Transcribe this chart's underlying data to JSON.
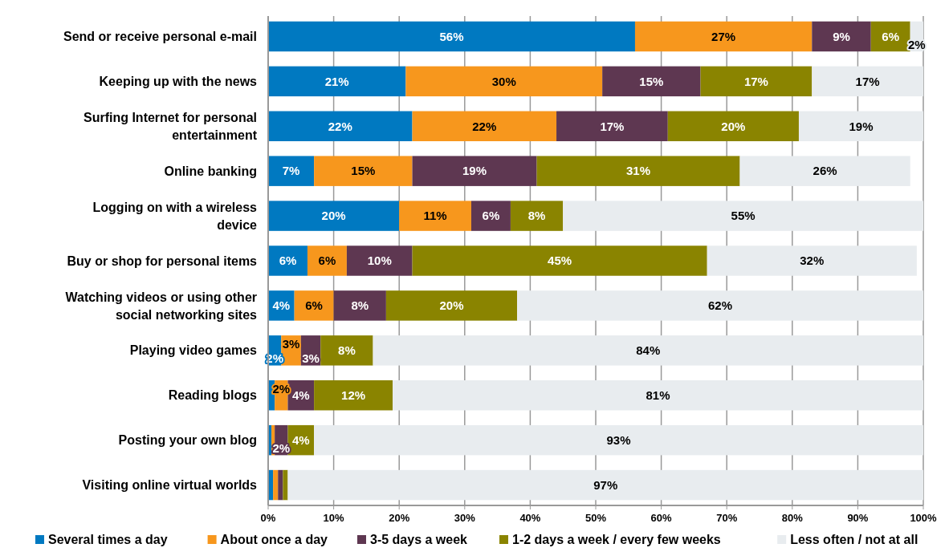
{
  "chart_data": {
    "type": "bar",
    "orientation": "horizontal",
    "stacked": true,
    "grid": "x",
    "legend": "bottom",
    "categories": [
      "Send or receive personal e-mail",
      "Keeping up with the news",
      "Surfing Internet for personal entertainment",
      "Online banking",
      "Logging on with a wireless device",
      "Buy or shop for personal items",
      "Watching videos or using other social networking sites",
      "Playing video games",
      "Reading blogs",
      "Posting your own blog",
      "Visiting online virtual worlds"
    ],
    "xlim": [
      0,
      100
    ],
    "xticks": [
      {
        "value": 0,
        "label": "0%"
      },
      {
        "value": 10,
        "label": "10%"
      },
      {
        "value": 20,
        "label": "20%"
      },
      {
        "value": 30,
        "label": "30%"
      },
      {
        "value": 40,
        "label": "40%"
      },
      {
        "value": 50,
        "label": "50%"
      },
      {
        "value": 60,
        "label": "60%"
      },
      {
        "value": 70,
        "label": "70%"
      },
      {
        "value": 80,
        "label": "80%"
      },
      {
        "value": 90,
        "label": "90%"
      },
      {
        "value": 100,
        "label": "100%"
      }
    ],
    "series": [
      {
        "name": "Several times a day",
        "color": "#0079c1",
        "values": [
          56,
          21,
          22,
          7,
          20,
          6,
          4,
          2,
          1,
          0.5,
          0.75
        ],
        "value_labels": [
          "56%",
          "21%",
          "22%",
          "7%",
          "20%",
          "6%",
          "4%",
          "2%",
          null,
          null,
          null
        ]
      },
      {
        "name": "About once a day",
        "color": "#f7971d",
        "values": [
          27,
          30,
          22,
          15,
          11,
          6,
          6,
          3,
          2,
          0.5,
          0.75
        ],
        "value_labels": [
          "27%",
          "30%",
          "22%",
          "15%",
          "11%",
          "6%",
          "6%",
          "3%",
          "2%",
          null,
          null
        ]
      },
      {
        "name": "3-5 days a week",
        "color": "#5e3751",
        "values": [
          9,
          15,
          17,
          19,
          6,
          10,
          8,
          3,
          4,
          2,
          0.75
        ],
        "value_labels": [
          "9%",
          "15%",
          "17%",
          "19%",
          "6%",
          "10%",
          "8%",
          "3%",
          "4%",
          "2%",
          null
        ]
      },
      {
        "name": "1-2 days a week / every few weeks",
        "color": "#8a8400",
        "values": [
          6,
          17,
          20,
          31,
          8,
          45,
          20,
          8,
          12,
          4,
          0.75
        ],
        "value_labels": [
          "6%",
          "17%",
          "20%",
          "31%",
          "8%",
          "45%",
          "20%",
          "8%",
          "12%",
          "4%",
          null
        ]
      },
      {
        "name": "Less often / not at all",
        "color": "#e8ecef",
        "values": [
          2,
          17,
          19,
          26,
          55,
          32,
          62,
          84,
          81,
          93,
          97
        ],
        "value_labels": [
          "2%",
          "17%",
          "19%",
          "26%",
          "55%",
          "32%",
          "62%",
          "84%",
          "81%",
          "93%",
          "97%"
        ]
      }
    ]
  }
}
